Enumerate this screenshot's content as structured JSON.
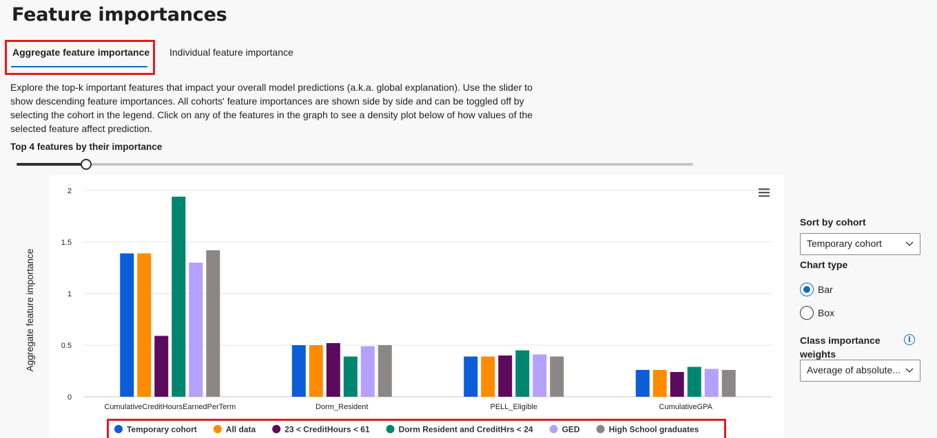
{
  "page": {
    "title": "Feature importances"
  },
  "tabs": [
    {
      "label": "Aggregate feature importance",
      "selected": true
    },
    {
      "label": "Individual feature importance",
      "selected": false
    }
  ],
  "description": "Explore the top-k important features that impact your overall model predictions (a.k.a. global explanation). Use the slider to show descending feature importances. All cohorts' feature importances are shown side by side and can be toggled off by selecting the cohort in the legend. Click on any of the features in the graph to see a density plot below of how values of the selected feature affect prediction.",
  "slider": {
    "label": "Top 4 features by their importance",
    "value": 4
  },
  "controls": {
    "sort_label": "Sort by cohort",
    "sort_value": "Temporary cohort",
    "chart_type_label": "Chart type",
    "chart_type_options": [
      "Bar",
      "Box"
    ],
    "chart_type_selected": "Bar",
    "class_weights_label": "Class importance weights",
    "class_weights_value": "Average of absolute...",
    "info_icon": "info-icon",
    "info_glyph": "i",
    "menu_icon": "hamburger-menu-icon"
  },
  "chart_data": {
    "type": "bar",
    "ylabel": "Aggregate feature importance",
    "xlabel": "",
    "ylim": [
      0,
      2
    ],
    "yticks": [
      0,
      0.5,
      1,
      1.5,
      2
    ],
    "ytick_labels": [
      "0",
      "0.5",
      "1",
      "1.5",
      "2"
    ],
    "grid": true,
    "legend_position": "bottom",
    "categories": [
      "CumulativeCreditHoursEarnedPerTerm",
      "Dorm_Resident",
      "PELL_Eligible",
      "CumulativeGPA"
    ],
    "series": [
      {
        "name": "Temporary cohort",
        "color": "#0b5ed7",
        "values": [
          1.39,
          0.5,
          0.39,
          0.26
        ]
      },
      {
        "name": "All data",
        "color": "#ff8c00",
        "values": [
          1.39,
          0.5,
          0.39,
          0.26
        ]
      },
      {
        "name": "23 < CreditHours < 61",
        "color": "#5c0a5c",
        "values": [
          0.59,
          0.52,
          0.4,
          0.24
        ]
      },
      {
        "name": "Dorm Resident and CreditHrs < 24",
        "color": "#00866f",
        "values": [
          1.94,
          0.39,
          0.45,
          0.29
        ]
      },
      {
        "name": "GED",
        "color": "#b4a0ff",
        "values": [
          1.3,
          0.49,
          0.41,
          0.27
        ]
      },
      {
        "name": "High School graduates",
        "color": "#8a8886",
        "values": [
          1.42,
          0.5,
          0.39,
          0.26
        ]
      }
    ]
  }
}
